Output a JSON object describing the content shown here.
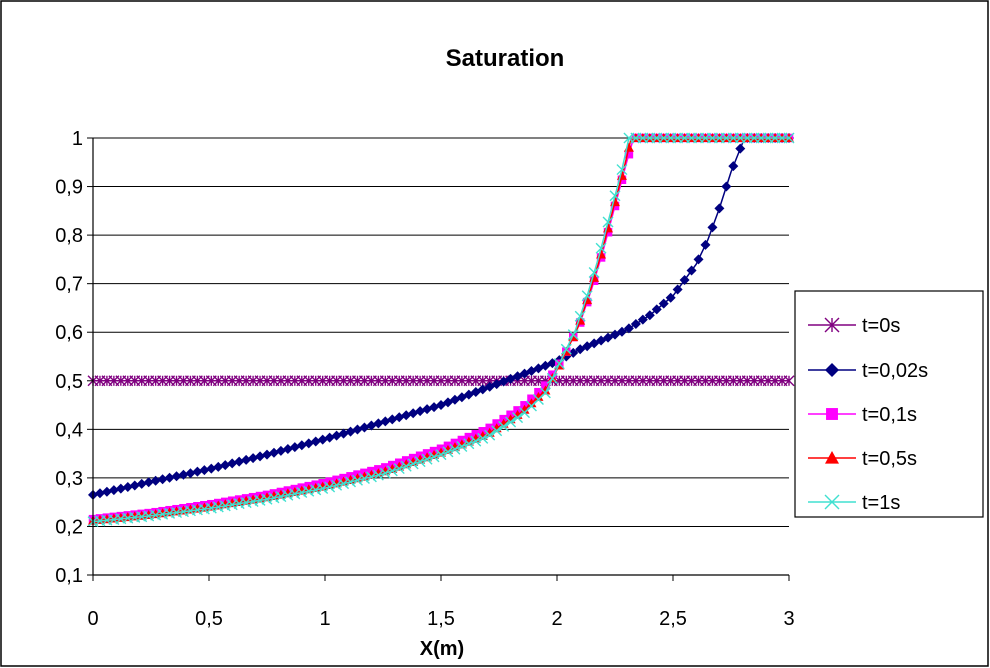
{
  "chart_data": {
    "type": "line",
    "title": "Saturation",
    "xlabel": "X(m)",
    "ylabel": "",
    "xlim": [
      0,
      3
    ],
    "ylim": [
      0.1,
      1
    ],
    "x_ticks": [
      "0",
      "0,5",
      "1",
      "1,5",
      "2",
      "2,5",
      "3"
    ],
    "y_ticks": [
      "0,1",
      "0,2",
      "0,3",
      "0,4",
      "0,5",
      "0,6",
      "0,7",
      "0,8",
      "0,9",
      "1"
    ],
    "grid": "horizontal",
    "legend_position": "right",
    "series": [
      {
        "name": "t=0s",
        "color": "#800080",
        "marker": "star",
        "x": [
          0,
          3
        ],
        "y": [
          0.5,
          0.5
        ]
      },
      {
        "name": "t=0,02s",
        "color": "#000080",
        "marker": "diamond",
        "x": [
          0,
          0.25,
          0.5,
          0.75,
          1,
          1.25,
          1.5,
          1.75,
          2,
          2.1,
          2.2,
          2.3,
          2.4,
          2.5,
          2.6,
          2.65,
          2.7,
          2.75,
          2.8,
          2.82,
          3
        ],
        "y": [
          0.265,
          0.292,
          0.318,
          0.348,
          0.38,
          0.415,
          0.45,
          0.495,
          0.54,
          0.565,
          0.585,
          0.605,
          0.635,
          0.675,
          0.74,
          0.79,
          0.855,
          0.93,
          0.99,
          1,
          1
        ]
      },
      {
        "name": "t=0,1s",
        "color": "#ff00ff",
        "marker": "square",
        "x": [
          0,
          0.25,
          0.5,
          0.75,
          1,
          1.25,
          1.5,
          1.7,
          1.85,
          1.95,
          2.03,
          2.1,
          2.15,
          2.2,
          2.25,
          2.3,
          2.33,
          3
        ],
        "y": [
          0.215,
          0.228,
          0.245,
          0.265,
          0.29,
          0.32,
          0.36,
          0.4,
          0.445,
          0.49,
          0.55,
          0.62,
          0.69,
          0.77,
          0.86,
          0.95,
          1,
          1
        ]
      },
      {
        "name": "t=0,5s",
        "color": "#ff0000",
        "marker": "triangle",
        "x": [
          0,
          0.25,
          0.5,
          0.75,
          1,
          1.25,
          1.5,
          1.7,
          1.85,
          1.95,
          2.02,
          2.09,
          2.14,
          2.19,
          2.24,
          2.29,
          2.32,
          3
        ],
        "y": [
          0.212,
          0.224,
          0.24,
          0.26,
          0.283,
          0.312,
          0.352,
          0.39,
          0.436,
          0.48,
          0.54,
          0.61,
          0.68,
          0.76,
          0.85,
          0.94,
          1,
          1
        ]
      },
      {
        "name": "t=1s",
        "color": "#40e0d0",
        "marker": "x",
        "x": [
          0,
          0.25,
          0.5,
          0.75,
          1,
          1.25,
          1.5,
          1.7,
          1.85,
          1.95,
          2.01,
          2.08,
          2.13,
          2.18,
          2.23,
          2.28,
          2.31,
          3
        ],
        "y": [
          0.21,
          0.222,
          0.237,
          0.256,
          0.279,
          0.308,
          0.348,
          0.385,
          0.43,
          0.475,
          0.535,
          0.605,
          0.675,
          0.755,
          0.845,
          0.935,
          1,
          1
        ]
      }
    ]
  }
}
